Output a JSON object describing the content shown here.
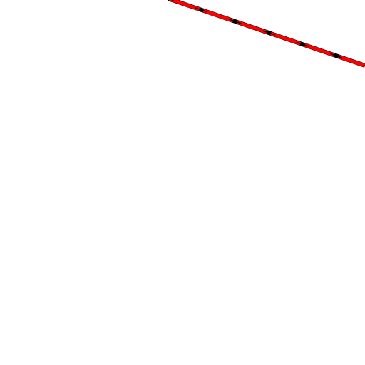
{
  "map": {
    "background_color": "#ffffff",
    "route": {
      "kind": "dashed-line",
      "casing_color": "#000000",
      "fill_color": "#ff0000"
    }
  }
}
